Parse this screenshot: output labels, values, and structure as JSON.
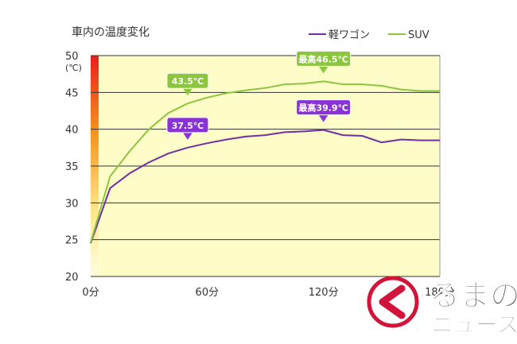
{
  "chart_data": {
    "type": "line",
    "title": "車内の温度変化",
    "unit_label": "(℃)",
    "x": [
      0,
      10,
      20,
      30,
      40,
      50,
      60,
      70,
      80,
      90,
      100,
      110,
      120,
      130,
      140,
      150,
      160,
      170,
      180
    ],
    "x_tick_values": [
      0,
      60,
      120,
      180
    ],
    "x_tick_labels": [
      "0分",
      "60分",
      "120分",
      "180分"
    ],
    "y_tick_values": [
      20,
      25,
      30,
      35,
      40,
      45,
      50
    ],
    "y_tick_labels": [
      "20",
      "25",
      "30",
      "35",
      "40",
      "45",
      "50"
    ],
    "xlim": [
      0,
      180
    ],
    "ylim": [
      20,
      50
    ],
    "grid": "horizontal",
    "legend_position": "top-right",
    "series": [
      {
        "name": "軽ワゴン",
        "color": "#7030a0",
        "values": [
          24.5,
          32.0,
          34.0,
          35.5,
          36.7,
          37.5,
          38.1,
          38.6,
          39.0,
          39.2,
          39.6,
          39.7,
          39.9,
          39.2,
          39.1,
          38.2,
          38.6,
          38.5,
          38.5
        ]
      },
      {
        "name": "SUV",
        "color": "#8cc63f",
        "values": [
          24.6,
          33.6,
          37.0,
          40.0,
          42.2,
          43.5,
          44.3,
          44.9,
          45.3,
          45.6,
          46.1,
          46.2,
          46.5,
          46.1,
          46.1,
          45.9,
          45.4,
          45.2,
          45.2
        ]
      }
    ],
    "annotations": [
      {
        "text": "43.5℃",
        "series": 1,
        "x": 50,
        "y": 43.5,
        "color": "#8cc63f"
      },
      {
        "text": "最高46.5℃",
        "series": 1,
        "x": 120,
        "y": 46.5,
        "color": "#8cc63f"
      },
      {
        "text": "37.5℃",
        "series": 0,
        "x": 50,
        "y": 37.5,
        "color": "#8a32d6"
      },
      {
        "text": "最高39.9℃",
        "series": 0,
        "x": 120,
        "y": 39.9,
        "color": "#8a32d6"
      }
    ]
  },
  "watermark": {
    "line1": "るまの",
    "line2": "ニュース"
  }
}
